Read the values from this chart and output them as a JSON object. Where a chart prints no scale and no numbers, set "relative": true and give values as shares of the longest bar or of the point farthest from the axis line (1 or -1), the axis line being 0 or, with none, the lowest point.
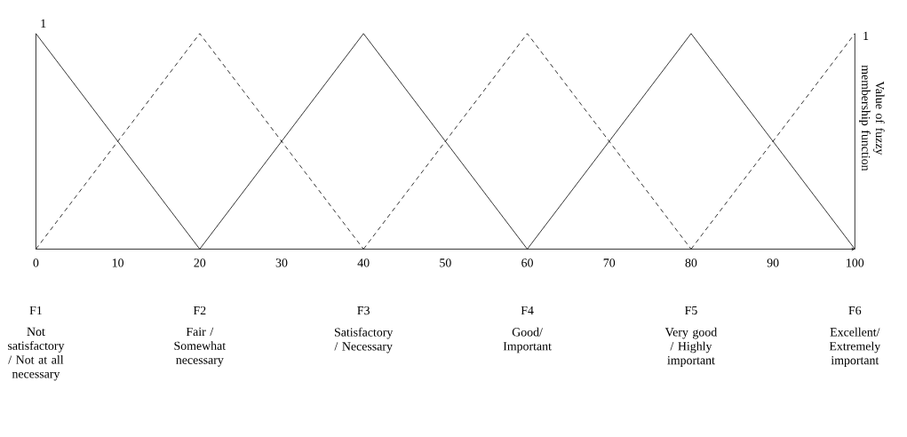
{
  "chart_data": {
    "type": "line",
    "relative": true,
    "y2label": "Value of fuzzy membership function",
    "xlim": [
      0,
      100
    ],
    "xticks": [
      0,
      10,
      20,
      30,
      40,
      50,
      60,
      70,
      80,
      90,
      100
    ],
    "marker": "none",
    "series": [
      {
        "color": "#000000",
        "line_style": "solid",
        "x": [
          0,
          20
        ],
        "values": [
          1,
          0
        ]
      },
      {
        "color": "#000000",
        "line_style": "dashed",
        "x": [
          0,
          20,
          40
        ],
        "values": [
          0,
          1,
          0
        ]
      },
      {
        "color": "#000000",
        "line_style": "solid",
        "x": [
          20,
          40,
          60
        ],
        "values": [
          0,
          1,
          0
        ]
      },
      {
        "color": "#000000",
        "line_style": "dashed",
        "x": [
          40,
          60,
          80
        ],
        "values": [
          0,
          1,
          0
        ]
      },
      {
        "color": "#000000",
        "line_style": "solid",
        "x": [
          60,
          80,
          100
        ],
        "values": [
          0,
          1,
          0
        ]
      },
      {
        "color": "#000000",
        "line_style": "dashed",
        "x": [
          80,
          100
        ],
        "values": [
          0,
          1
        ]
      }
    ],
    "annotations": [
      "1",
      "1",
      "F1",
      "Not satisfactory / Not at all necessary",
      "F2",
      "Fair / Somewhat necessary",
      "F3",
      "Satisfactory / Necessary",
      "F4",
      "Good/ Important",
      "F5",
      "Very good / Highly important",
      "F6",
      "Excellent/ Extremely important"
    ]
  }
}
